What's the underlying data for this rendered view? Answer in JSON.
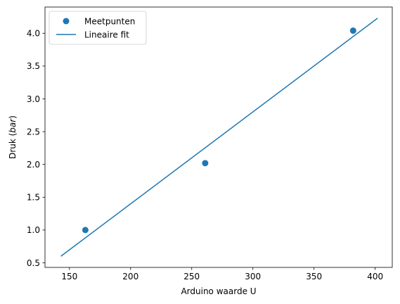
{
  "chart_data": {
    "type": "scatter",
    "title": "",
    "xlabel": "Arduino waarde U",
    "ylabel": {
      "prefix": "Druk (",
      "italic": "bar",
      "suffix": ")"
    },
    "xlim": [
      130,
      414
    ],
    "ylim": [
      0.43,
      4.4
    ],
    "x_ticks": [
      150,
      200,
      250,
      300,
      350,
      400
    ],
    "y_ticks": [
      0.5,
      1.0,
      1.5,
      2.0,
      2.5,
      3.0,
      3.5,
      4.0
    ],
    "x_tick_labels": [
      "150",
      "200",
      "250",
      "300",
      "350",
      "400"
    ],
    "y_tick_labels": [
      "0.5",
      "1.0",
      "1.5",
      "2.0",
      "2.5",
      "3.0",
      "3.5",
      "4.0"
    ],
    "grid": false,
    "legend_position": "top-left",
    "series": [
      {
        "name": "Meetpunten",
        "kind": "scatter",
        "color": "#1f77b4",
        "x": [
          163,
          261,
          382
        ],
        "y": [
          1.0,
          2.02,
          4.04
        ]
      },
      {
        "name": "Lineaire fit",
        "kind": "line",
        "color": "#1f77b4",
        "x": [
          143,
          402
        ],
        "y": [
          0.6,
          4.23
        ]
      }
    ]
  }
}
